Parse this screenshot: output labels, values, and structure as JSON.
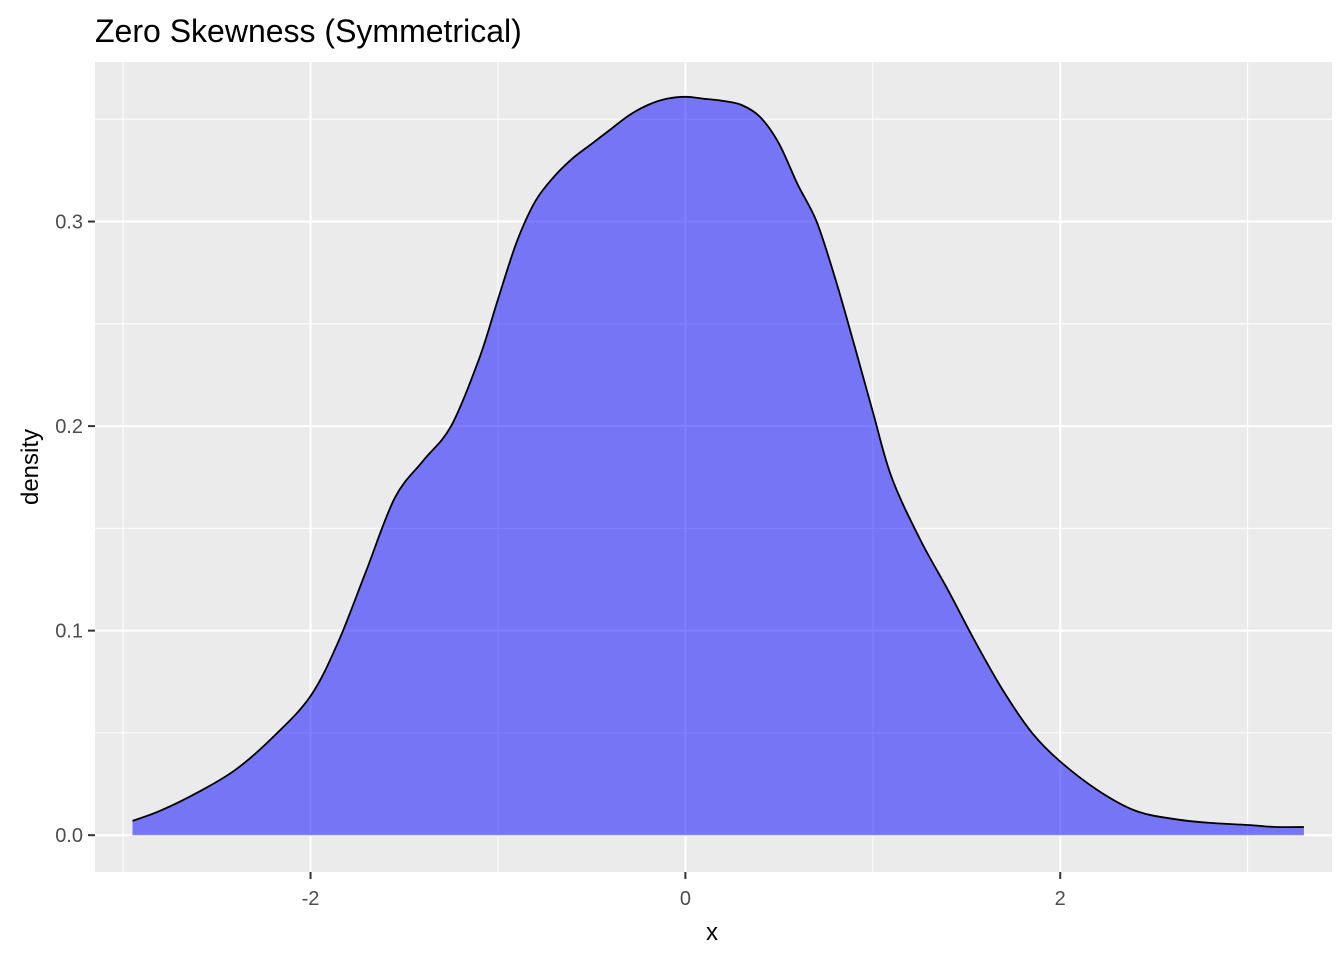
{
  "chart_data": {
    "type": "area",
    "title": "Zero Skewness (Symmetrical)",
    "xlabel": "x",
    "ylabel": "density",
    "xlim": [
      -3.15,
      3.45
    ],
    "ylim": [
      -0.018,
      0.378
    ],
    "x_ticks": [
      {
        "value": -2,
        "label": "-2"
      },
      {
        "value": 0,
        "label": "0"
      },
      {
        "value": 2,
        "label": "2"
      }
    ],
    "y_ticks": [
      {
        "value": 0.0,
        "label": "0.0"
      },
      {
        "value": 0.1,
        "label": "0.1"
      },
      {
        "value": 0.2,
        "label": "0.2"
      },
      {
        "value": 0.3,
        "label": "0.3"
      }
    ],
    "x_minor": [
      -3,
      -1,
      1,
      3
    ],
    "y_minor": [
      0.05,
      0.15,
      0.25,
      0.35
    ],
    "grid": true,
    "colors": {
      "panel_bg": "#ebebeb",
      "grid": "#ffffff",
      "fill": "#0000ff",
      "fill_alpha": 0.5,
      "stroke": "#000000"
    },
    "series": [
      {
        "x": [
          -2.95,
          -2.8,
          -2.6,
          -2.4,
          -2.2,
          -2.0,
          -1.85,
          -1.7,
          -1.55,
          -1.4,
          -1.25,
          -1.1,
          -1.0,
          -0.9,
          -0.8,
          -0.7,
          -0.6,
          -0.5,
          -0.4,
          -0.3,
          -0.2,
          -0.1,
          0.0,
          0.1,
          0.2,
          0.3,
          0.4,
          0.5,
          0.6,
          0.7,
          0.8,
          0.9,
          1.0,
          1.1,
          1.25,
          1.4,
          1.55,
          1.7,
          1.85,
          2.0,
          2.2,
          2.4,
          2.6,
          2.8,
          3.0,
          3.15,
          3.3
        ],
        "y": [
          0.007,
          0.012,
          0.021,
          0.032,
          0.048,
          0.068,
          0.095,
          0.13,
          0.165,
          0.183,
          0.2,
          0.233,
          0.262,
          0.29,
          0.31,
          0.322,
          0.331,
          0.338,
          0.345,
          0.352,
          0.357,
          0.36,
          0.361,
          0.36,
          0.359,
          0.357,
          0.351,
          0.338,
          0.318,
          0.3,
          0.272,
          0.24,
          0.207,
          0.175,
          0.145,
          0.12,
          0.094,
          0.07,
          0.05,
          0.036,
          0.022,
          0.012,
          0.008,
          0.006,
          0.005,
          0.004,
          0.004
        ]
      }
    ]
  }
}
